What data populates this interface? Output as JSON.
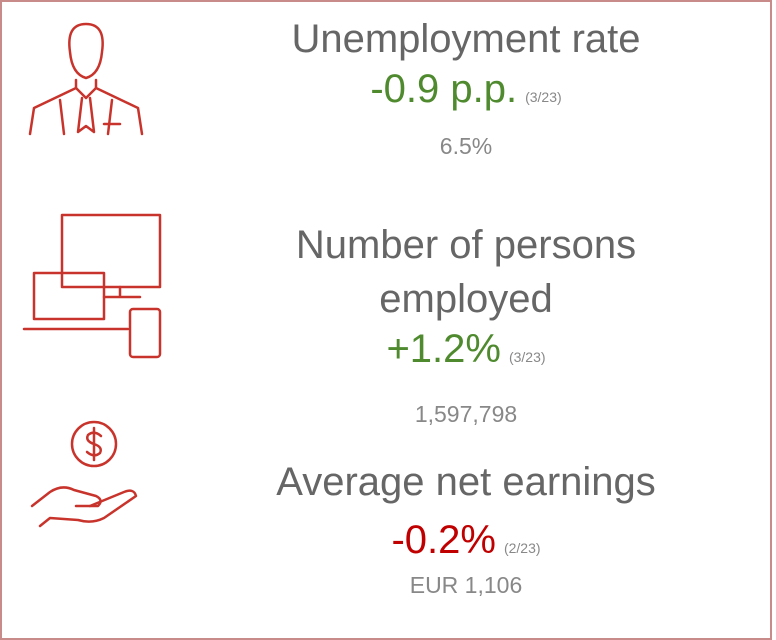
{
  "items": [
    {
      "title": "Unemployment rate",
      "change": "-0.9 p.p.",
      "period": "(3/23)",
      "value": "6.5%",
      "color": "#4f8a2f"
    },
    {
      "title": "Number of persons employed",
      "change": "+1.2%",
      "period": "(3/23)",
      "value": "1,597,798",
      "color": "#4f8a2f"
    },
    {
      "title": "Average net earnings",
      "change": "-0.2%",
      "period": "(2/23)",
      "value": "EUR 1,106",
      "color": "#c00000"
    }
  ]
}
